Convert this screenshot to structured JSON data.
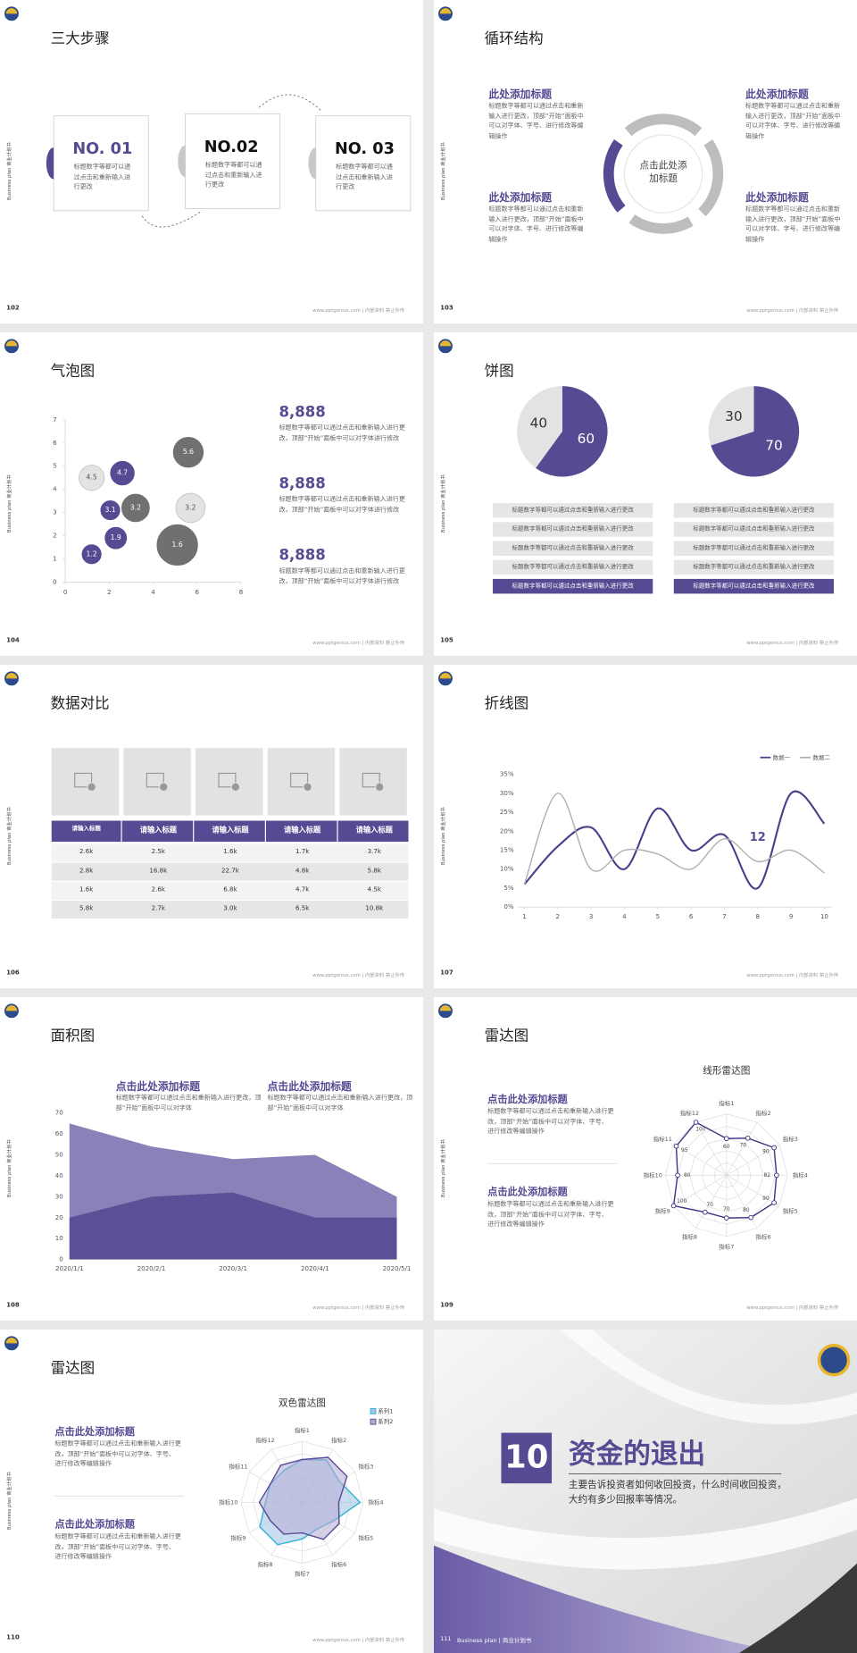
{
  "common": {
    "side_label": "Business plan 商业计划书",
    "footer": "www.pptgenius.com | 内部资料 禁止外传"
  },
  "slides": [
    {
      "page": "102",
      "title": "三大步骤",
      "steps": [
        {
          "label": "NO. 01",
          "text": "标题数字等都可以通过点击和重新输入进行更改"
        },
        {
          "label": "NO.02",
          "text": "标题数字等都可以通过点击和重新输入进行更改"
        },
        {
          "label": "NO. 03",
          "text": "标题数字等都可以通过点击和重新输入进行更改"
        }
      ]
    },
    {
      "page": "103",
      "title": "循环结构",
      "center": "点击此处添加标题",
      "blocks": [
        {
          "heading": "此处添加标题",
          "text": "标题数字等都可以通过点击和重新输入进行更改，顶部“开始”面板中可以对字体、字号、进行修改等编辑操作"
        },
        {
          "heading": "此处添加标题",
          "text": "标题数字等都可以通过点击和重新输入进行更改，顶部“开始”面板中可以对字体、字号、进行修改等编辑操作"
        },
        {
          "heading": "此处添加标题",
          "text": "标题数字等都可以通过点击和重新输入进行更改，顶部“开始”面板中可以对字体、字号、进行修改等编辑操作"
        },
        {
          "heading": "此处添加标题",
          "text": "标题数字等都可以通过点击和重新输入进行更改，顶部“开始”面板中可以对字体、字号、进行修改等编辑操作"
        }
      ]
    },
    {
      "page": "104",
      "title": "气泡图",
      "chart_data": {
        "type": "bubble",
        "xlim": [
          0,
          8
        ],
        "xticks": [
          0,
          2,
          4,
          6,
          8
        ],
        "ylim": [
          0,
          7
        ],
        "yticks": [
          0,
          1,
          2,
          3,
          4,
          5,
          6,
          7
        ],
        "series": [
          {
            "color": "#564a92",
            "x": [
              1.2,
              2.3,
              2.05,
              2.6
            ],
            "values": [
              1.2,
              1.9,
              3.1,
              4.7
            ],
            "sizes": [
              6,
              7.5,
              6,
              9
            ]
          },
          {
            "color": "#707070",
            "x": [
              3.2,
              5.6,
              5.1
            ],
            "values": [
              3.2,
              5.6,
              1.6
            ],
            "sizes": [
              12,
              14,
              25
            ]
          },
          {
            "color": "#e3e3e3",
            "x": [
              1.2,
              5.7
            ],
            "values": [
              4.5,
              3.2
            ],
            "sizes": [
              9,
              12
            ]
          }
        ]
      },
      "stats": [
        {
          "value": "8,888",
          "text": "标题数字等都可以通过点击和重新输入进行更改，顶部“开始”面板中可以对字体进行修改"
        },
        {
          "value": "8,888",
          "text": "标题数字等都可以通过点击和重新输入进行更改，顶部“开始”面板中可以对字体进行修改"
        },
        {
          "value": "8,888",
          "text": "标题数字等都可以通过点击和重新输入进行更改，顶部“开始”面板中可以对字体进行修改"
        }
      ]
    },
    {
      "page": "105",
      "title": "饼图",
      "chart_data": [
        {
          "type": "pie",
          "values": [
            60,
            40
          ],
          "colors": [
            "#574a93",
            "#e3e3e3"
          ]
        },
        {
          "type": "pie",
          "values": [
            70,
            30
          ],
          "colors": [
            "#574a93",
            "#e3e3e3"
          ]
        }
      ],
      "notes": [
        [
          "标题数字等都可以通过点击和重新输入进行更改",
          "标题数字等都可以通过点击和重新输入进行更改",
          "标题数字等都可以通过点击和重新输入进行更改",
          "标题数字等都可以通过点击和重新输入进行更改",
          "标题数字等都可以通过点击和重新输入进行更改"
        ],
        [
          "标题数字等都可以通过点击和重新输入进行更改",
          "标题数字等都可以通过点击和重新输入进行更改",
          "标题数字等都可以通过点击和重新输入进行更改",
          "标题数字等都可以通过点击和重新输入进行更改",
          "标题数字等都可以通过点击和重新输入进行更改"
        ]
      ]
    },
    {
      "page": "106",
      "title": "数据对比",
      "table": {
        "header": [
          "请输入标题",
          "请输入标题",
          "请输入标题",
          "请输入标题",
          "请输入标题"
        ],
        "rows": [
          [
            "2.6k",
            "2.5k",
            "1.6k",
            "1.7k",
            "3.7k"
          ],
          [
            "2.8k",
            "16.8k",
            "22.7k",
            "4.8k",
            "5.8k"
          ],
          [
            "1.6k",
            "2.6k",
            "6.8k",
            "4.7k",
            "4.5k"
          ],
          [
            "5.8k",
            "2.7k",
            "3.0k",
            "6.5k",
            "10.8k"
          ]
        ]
      }
    },
    {
      "page": "107",
      "title": "折线图",
      "chart_data": {
        "type": "line",
        "x": [
          1,
          2,
          3,
          4,
          5,
          6,
          7,
          8,
          9,
          10
        ],
        "xlim": [
          1,
          10
        ],
        "xticks": [
          1,
          2,
          3,
          4,
          5,
          6,
          7,
          8,
          9,
          10
        ],
        "ylim": [
          0,
          35
        ],
        "yticks": [
          {
            "value": 0,
            "label": "0%"
          },
          {
            "value": 5,
            "label": "5%"
          },
          {
            "value": 10,
            "label": "10%"
          },
          {
            "value": 15,
            "label": "15%"
          },
          {
            "value": 20,
            "label": "20%"
          },
          {
            "value": 25,
            "label": "25%"
          },
          {
            "value": 30,
            "label": "30%"
          },
          {
            "value": 35,
            "label": "35%"
          }
        ],
        "series": [
          {
            "name": "数据一",
            "color": "#4b3f8c",
            "values": [
              6,
              16,
              21,
              10,
              26,
              15,
              19,
              5,
              30,
              22
            ]
          },
          {
            "name": "数据二",
            "color": "#b0b0b0",
            "values": [
              6,
              30,
              10,
              15,
              14,
              10,
              18,
              12,
              15,
              9
            ]
          }
        ],
        "annotation": "12",
        "legend": "top-right"
      }
    },
    {
      "page": "108",
      "title": "面积图",
      "blocks": [
        {
          "heading": "点击此处添加标题",
          "text": "标题数字等都可以通过点击和重新输入进行更改，顶部“开始”面板中可以对字体"
        },
        {
          "heading": "点击此处添加标题",
          "text": "标题数字等都可以通过点击和重新输入进行更改，顶部“开始”面板中可以对字体"
        }
      ],
      "chart_data": {
        "type": "area",
        "categories": [
          "2020/1/1",
          "2020/2/1",
          "2020/3/1",
          "2020/4/1",
          "2020/5/1"
        ],
        "ylim": [
          0,
          70
        ],
        "yticks": [
          0,
          10,
          20,
          30,
          40,
          50,
          60,
          70
        ],
        "series": [
          {
            "color": "#8c80b8",
            "values": [
              65,
              54,
              48,
              50,
              30
            ]
          },
          {
            "color": "#5c4f97",
            "values": [
              20,
              30,
              32,
              20,
              20
            ]
          }
        ]
      }
    },
    {
      "page": "109",
      "title": "雷达图",
      "blocks": [
        {
          "heading": "点击此处添加标题",
          "text": "标题数字等都可以通过点击和重新输入进行更改，顶部“开始”面板中可以对字体、字号、进行修改等编辑操作"
        },
        {
          "heading": "点击此处添加标题",
          "text": "标题数字等都可以通过点击和重新输入进行更改，顶部“开始”面板中可以对字体、字号、进行修改等编辑操作"
        }
      ],
      "chart_data": {
        "type": "radar",
        "title": "线形雷达图",
        "categories": [
          "指标1",
          "指标2",
          "指标3",
          "指标4",
          "指标5",
          "指标6",
          "指标7",
          "指标8",
          "指标9",
          "指标10",
          "指标11",
          "指标12"
        ],
        "rlim": [
          0,
          100
        ],
        "data_labels": true,
        "markers": true,
        "series": [
          {
            "color": "#3f3585",
            "values": [
              60,
              70,
              90,
              82,
              90,
              80,
              70,
              70,
              100,
              80,
              95,
              100
            ]
          }
        ]
      }
    },
    {
      "page": "110",
      "title": "雷达图",
      "blocks": [
        {
          "heading": "点击此处添加标题",
          "text": "标题数字等都可以通过点击和重新输入进行更改，顶部“开始”面板中可以对字体、字号、进行修改等编辑操作"
        },
        {
          "heading": "点击此处添加标题",
          "text": "标题数字等都可以通过点击和重新输入进行更改，顶部“开始”面板中可以对字体、字号、进行修改等编辑操作"
        }
      ],
      "chart_data": {
        "type": "radar",
        "title": "双色雷达图",
        "categories": [
          "指标1",
          "指标2",
          "指标3",
          "指标4",
          "指标5",
          "指标6",
          "指标7",
          "指标8",
          "指标9",
          "指标10",
          "指标11",
          "指标12"
        ],
        "rlim": [
          0,
          100
        ],
        "legend": "top-right",
        "series": [
          {
            "name": "系列1",
            "color": "#2fb3d3",
            "fill": "#9fc3e6",
            "values": [
              70,
              80,
              70,
              95,
              60,
              50,
              60,
              80,
              80,
              60,
              60,
              60
            ]
          },
          {
            "name": "系列2",
            "color": "#5a4d94",
            "fill": "#b6acd3",
            "values": [
              70,
              85,
              85,
              60,
              70,
              70,
              50,
              60,
              60,
              70,
              60,
              70
            ]
          }
        ]
      }
    },
    {
      "page": "111",
      "number": "10",
      "title": "资金的退出",
      "text": "主要告诉投资者如何收回投资，什么时间收回投资，大约有多少回报率等情况。",
      "footer": "Business plan | 商业计划书"
    }
  ]
}
